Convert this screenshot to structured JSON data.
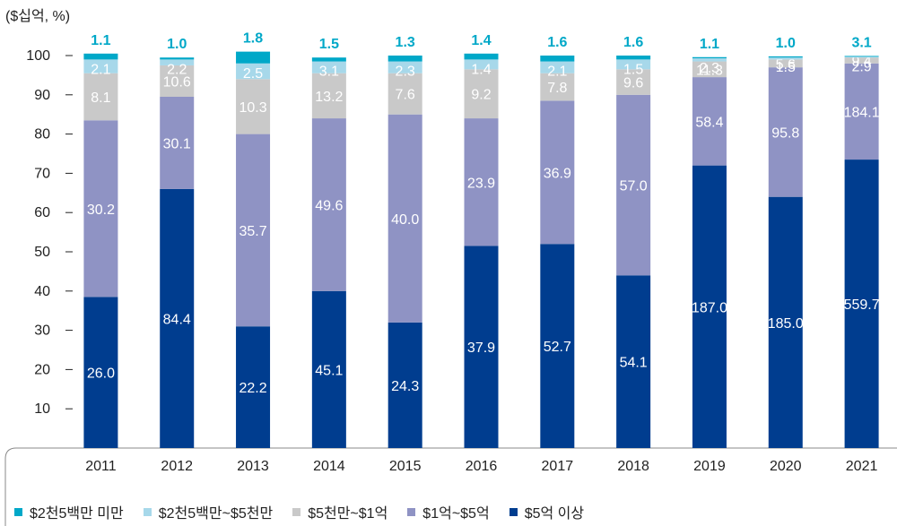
{
  "chart_data": {
    "type": "bar",
    "stacked": true,
    "unit_label": "($십억, %)",
    "categories": [
      "2011",
      "2012",
      "2013",
      "2014",
      "2015",
      "2016",
      "2017",
      "2018",
      "2019",
      "2020",
      "2021"
    ],
    "ylim": [
      0,
      100
    ],
    "yticks": [
      10,
      20,
      30,
      40,
      50,
      60,
      70,
      80,
      90,
      100
    ],
    "series": [
      {
        "name": "$5억 이상",
        "color": "#003d8f",
        "label_color": "#ffffff",
        "share": [
          38.5,
          66.0,
          31.0,
          40.0,
          32.0,
          51.5,
          52.0,
          44.0,
          72.0,
          64.0,
          73.5
        ],
        "labels": [
          "26.0",
          "84.4",
          "22.2",
          "45.1",
          "24.3",
          "37.9",
          "52.7",
          "54.1",
          "187.0",
          "185.0",
          "559.7"
        ]
      },
      {
        "name": "$1억~$5억",
        "color": "#8f93c4",
        "label_color": "#ffffff",
        "share": [
          45.0,
          23.5,
          49.0,
          44.0,
          53.0,
          32.5,
          36.5,
          46.0,
          22.5,
          33.0,
          24.5
        ],
        "labels": [
          "30.2",
          "30.1",
          "35.7",
          "49.6",
          "40.0",
          "23.9",
          "36.9",
          "57.0",
          "58.4",
          "95.8",
          "184.1"
        ]
      },
      {
        "name": "$5천만~$1억",
        "color": "#c9c9c9",
        "label_color": "#ffffff",
        "share": [
          12.0,
          8.0,
          14.0,
          11.5,
          10.5,
          12.5,
          7.0,
          6.5,
          4.0,
          2.0,
          1.5
        ],
        "labels": [
          "8.1",
          "10.6",
          "10.3",
          "13.2",
          "7.6",
          "9.2",
          "7.8",
          "9.6",
          "11.3",
          "5.6",
          "9.4"
        ]
      },
      {
        "name": "$2천5백만~$5천만",
        "color": "#a7d8ea",
        "label_color": "#ffffff",
        "share": [
          3.5,
          1.5,
          4.0,
          3.0,
          3.0,
          2.5,
          3.0,
          2.5,
          0.8,
          0.5,
          0.2
        ],
        "labels": [
          "2.1",
          "2.2",
          "2.5",
          "3.1",
          "2.3",
          "1.4",
          "2.1",
          "1.5",
          "2.3",
          "1.5",
          "2.9"
        ]
      },
      {
        "name": "$2천5백만 미만",
        "color": "#00a8c8",
        "label_color": "#00a8c8",
        "share": [
          1.5,
          0.5,
          3.0,
          1.0,
          1.5,
          1.5,
          1.5,
          1.0,
          0.3,
          0.3,
          0.2
        ],
        "labels": [
          "1.1",
          "1.0",
          "1.8",
          "1.5",
          "1.3",
          "1.4",
          "1.6",
          "1.6",
          "1.1",
          "1.0",
          "3.1"
        ]
      }
    ],
    "legend_position": "bottom-left",
    "grid": false
  }
}
